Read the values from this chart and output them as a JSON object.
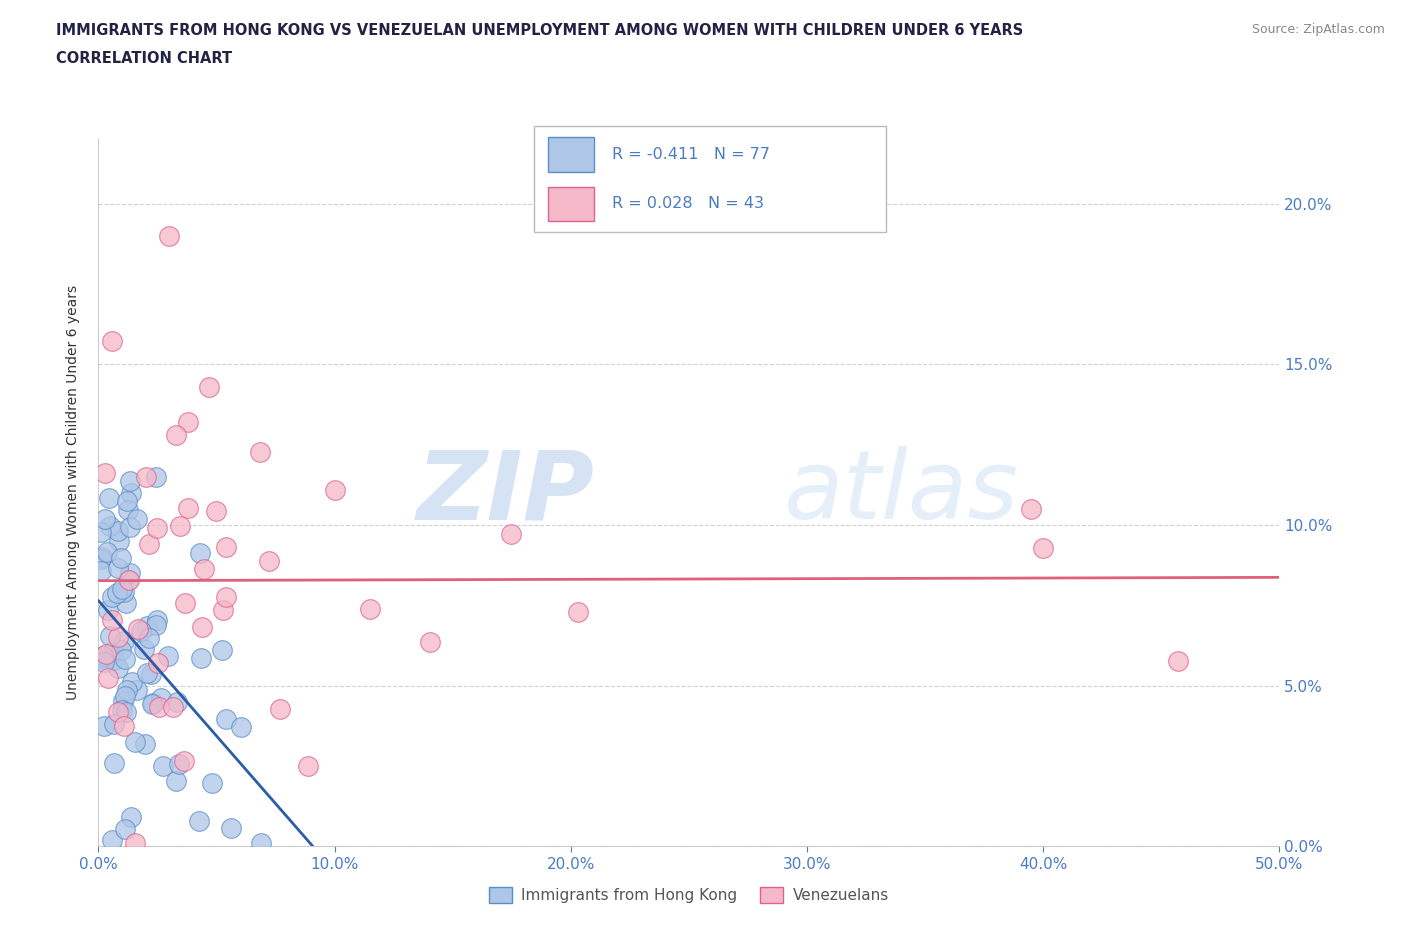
{
  "title_line1": "IMMIGRANTS FROM HONG KONG VS VENEZUELAN UNEMPLOYMENT AMONG WOMEN WITH CHILDREN UNDER 6 YEARS",
  "title_line2": "CORRELATION CHART",
  "source_text": "Source: ZipAtlas.com",
  "ylabel": "Unemployment Among Women with Children Under 6 years",
  "watermark_zip": "ZIP",
  "watermark_atlas": "atlas",
  "hk_color": "#aec6e8",
  "hk_edge_color": "#5b8ec4",
  "ven_color": "#f4b8c8",
  "ven_edge_color": "#e06090",
  "hk_line_color": "#2a5ca8",
  "ven_line_color": "#e0607a",
  "hk_R": -0.411,
  "hk_N": 77,
  "ven_R": 0.028,
  "ven_N": 43,
  "hk_label": "Immigrants from Hong Kong",
  "ven_label": "Venezuelans",
  "xlim": [
    0.0,
    0.5
  ],
  "ylim": [
    0.0,
    0.22
  ],
  "xticks": [
    0.0,
    0.1,
    0.2,
    0.3,
    0.4,
    0.5
  ],
  "yticks": [
    0.0,
    0.05,
    0.1,
    0.15,
    0.2
  ],
  "tick_color": "#4a7cc4",
  "title_color": "#222244",
  "source_color": "#888888",
  "grid_color": "#cccccc",
  "bg_color": "#ffffff"
}
